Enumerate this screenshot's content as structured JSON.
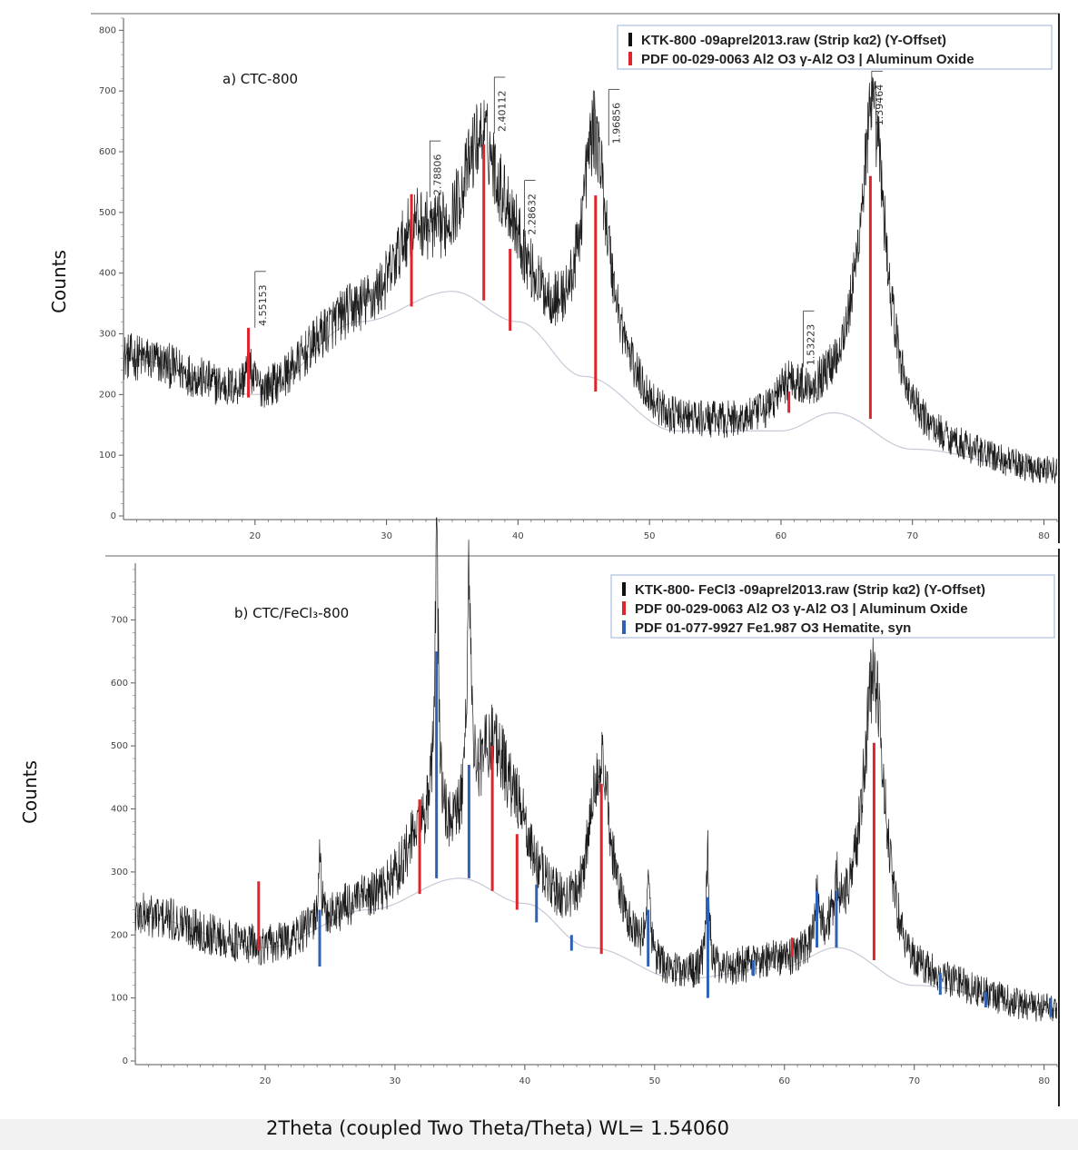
{
  "x_axis_label": "2Theta (coupled Two Theta/Theta) WL= 1.54060",
  "chart_data": [
    {
      "type": "line",
      "panel_label": "a) CTC-800",
      "ylabel": "Counts",
      "xlim": [
        10,
        81
      ],
      "ylim": [
        0,
        820
      ],
      "x_ticks": [
        20,
        30,
        40,
        50,
        60,
        70,
        80
      ],
      "y_ticks": [
        0,
        100,
        200,
        300,
        400,
        500,
        600,
        700,
        800
      ],
      "grid": false,
      "legend_position": "top-right",
      "legend": [
        {
          "label": "KTK-800 -09aprel2013.raw (Strip kα2) (Y-Offset)",
          "color": "#111111"
        },
        {
          "label": "PDF 00-029-0063 Al2 O3 γ-Al2 O3 | Aluminum Oxide",
          "color": "#e0242c"
        }
      ],
      "pattern_peaks": [
        {
          "x": 10,
          "y": 290,
          "w": 0
        },
        {
          "x": 19.5,
          "y": 40,
          "w": 0.5
        },
        {
          "x": 32,
          "y": 100,
          "w": 2.2
        },
        {
          "x": 37.3,
          "y": 250,
          "w": 2.3
        },
        {
          "x": 39.5,
          "y": 60,
          "w": 1.2
        },
        {
          "x": 45.8,
          "y": 390,
          "w": 1.6
        },
        {
          "x": 60.6,
          "y": 60,
          "w": 1.5
        },
        {
          "x": 67,
          "y": 520,
          "w": 1.6
        }
      ],
      "background_curve": [
        [
          10,
          260
        ],
        [
          20,
          200
        ],
        [
          28,
          320
        ],
        [
          35,
          370
        ],
        [
          40,
          320
        ],
        [
          45,
          230
        ],
        [
          52,
          140
        ],
        [
          60,
          140
        ],
        [
          64,
          170
        ],
        [
          70,
          110
        ],
        [
          81,
          70
        ]
      ],
      "reference_sticks": [
        {
          "x": 19.5,
          "top": 310,
          "bottom": 195,
          "color": "#e0242c"
        },
        {
          "x": 31.9,
          "top": 530,
          "bottom": 345,
          "color": "#e0242c"
        },
        {
          "x": 37.4,
          "top": 612,
          "bottom": 355,
          "color": "#e0242c"
        },
        {
          "x": 39.4,
          "top": 440,
          "bottom": 305,
          "color": "#e0242c"
        },
        {
          "x": 45.9,
          "top": 528,
          "bottom": 205,
          "color": "#e0242c"
        },
        {
          "x": 60.6,
          "top": 205,
          "bottom": 170,
          "color": "#e0242c"
        },
        {
          "x": 66.8,
          "top": 560,
          "bottom": 160,
          "color": "#e0242c"
        }
      ],
      "peak_labels": [
        {
          "x": 20,
          "y": 310,
          "label": "4.55153"
        },
        {
          "x": 33.3,
          "y": 525,
          "label": "2.78806"
        },
        {
          "x": 38.2,
          "y": 630,
          "label": "2.40112"
        },
        {
          "x": 40.5,
          "y": 460,
          "label": "2.28632"
        },
        {
          "x": 46.9,
          "y": 610,
          "label": "1.96856"
        },
        {
          "x": 61.7,
          "y": 245,
          "label": "1.53223"
        },
        {
          "x": 66.9,
          "y": 640,
          "label": "1.39464"
        }
      ]
    },
    {
      "type": "line",
      "panel_label": "b) CTC/FeCl₃-800",
      "ylabel": "Counts",
      "xlim": [
        10,
        81
      ],
      "ylim": [
        0,
        790
      ],
      "x_ticks": [
        20,
        30,
        40,
        50,
        60,
        70,
        80
      ],
      "y_ticks": [
        0,
        100,
        200,
        300,
        400,
        500,
        600,
        700
      ],
      "grid": false,
      "legend_position": "top-right",
      "legend": [
        {
          "label": "KTK-800- FeCl3 -09aprel2013.raw (Strip kα2) (Y-Offset)",
          "color": "#111111"
        },
        {
          "label": "PDF 00-029-0063 Al2 O3 γ-Al2 O3 | Aluminum Oxide",
          "color": "#e0242c"
        },
        {
          "label": "PDF 01-077-9927 Fe1.987 O3 Hematite, syn",
          "color": "#2f62b5"
        }
      ],
      "pattern_peaks": [
        {
          "x": 10,
          "y": 250,
          "w": 0
        },
        {
          "x": 24.2,
          "y": 120,
          "w": 0.15
        },
        {
          "x": 32,
          "y": 80,
          "w": 2.2
        },
        {
          "x": 33.2,
          "y": 430,
          "w": 0.25
        },
        {
          "x": 35.7,
          "y": 380,
          "w": 0.25
        },
        {
          "x": 37.6,
          "y": 220,
          "w": 2.0
        },
        {
          "x": 39.5,
          "y": 60,
          "w": 1.0
        },
        {
          "x": 45.8,
          "y": 290,
          "w": 1.3
        },
        {
          "x": 49.5,
          "y": 140,
          "w": 0.2
        },
        {
          "x": 54.1,
          "y": 180,
          "w": 0.2
        },
        {
          "x": 62.5,
          "y": 60,
          "w": 0.25
        },
        {
          "x": 64,
          "y": 70,
          "w": 0.25
        },
        {
          "x": 66.9,
          "y": 460,
          "w": 1.3
        }
      ],
      "background_curve": [
        [
          10,
          230
        ],
        [
          20,
          180
        ],
        [
          28,
          240
        ],
        [
          35,
          290
        ],
        [
          40,
          250
        ],
        [
          45,
          180
        ],
        [
          52,
          130
        ],
        [
          60,
          150
        ],
        [
          64,
          180
        ],
        [
          70,
          120
        ],
        [
          81,
          80
        ]
      ],
      "reference_sticks": [
        {
          "x": 19.5,
          "top": 285,
          "bottom": 175,
          "color": "#e0242c"
        },
        {
          "x": 24.2,
          "top": 240,
          "bottom": 150,
          "color": "#2f62b5"
        },
        {
          "x": 31.9,
          "top": 415,
          "bottom": 265,
          "color": "#e0242c"
        },
        {
          "x": 33.2,
          "top": 650,
          "bottom": 290,
          "color": "#2f62b5"
        },
        {
          "x": 35.7,
          "top": 470,
          "bottom": 290,
          "color": "#2f62b5"
        },
        {
          "x": 37.5,
          "top": 500,
          "bottom": 270,
          "color": "#e0242c"
        },
        {
          "x": 39.4,
          "top": 360,
          "bottom": 240,
          "color": "#e0242c"
        },
        {
          "x": 40.9,
          "top": 280,
          "bottom": 220,
          "color": "#2f62b5"
        },
        {
          "x": 43.6,
          "top": 200,
          "bottom": 175,
          "color": "#2f62b5"
        },
        {
          "x": 45.9,
          "top": 440,
          "bottom": 170,
          "color": "#e0242c"
        },
        {
          "x": 49.5,
          "top": 240,
          "bottom": 150,
          "color": "#2f62b5"
        },
        {
          "x": 54.1,
          "top": 260,
          "bottom": 100,
          "color": "#2f62b5"
        },
        {
          "x": 57.6,
          "top": 160,
          "bottom": 135,
          "color": "#2f62b5"
        },
        {
          "x": 60.6,
          "top": 195,
          "bottom": 165,
          "color": "#e0242c"
        },
        {
          "x": 62.5,
          "top": 270,
          "bottom": 180,
          "color": "#2f62b5"
        },
        {
          "x": 64.0,
          "top": 270,
          "bottom": 180,
          "color": "#2f62b5"
        },
        {
          "x": 66.9,
          "top": 505,
          "bottom": 160,
          "color": "#e0242c"
        },
        {
          "x": 72.0,
          "top": 140,
          "bottom": 105,
          "color": "#2f62b5"
        },
        {
          "x": 75.5,
          "top": 110,
          "bottom": 85,
          "color": "#2f62b5"
        },
        {
          "x": 80.5,
          "top": 100,
          "bottom": 70,
          "color": "#2f62b5"
        }
      ]
    }
  ]
}
